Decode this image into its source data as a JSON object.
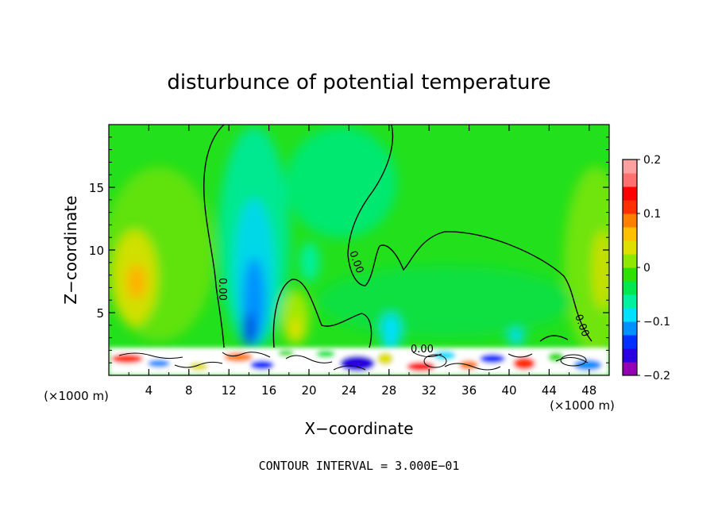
{
  "chart_data": {
    "type": "heatmap",
    "title": "disturbunce of potential temperature",
    "xlabel": "X−coordinate",
    "ylabel": "Z−coordinate",
    "x_unit_left": "(×1000 m)",
    "x_unit_right": "(×1000 m)",
    "xlim": [
      0,
      50
    ],
    "ylim": [
      0,
      20
    ],
    "x_ticks": [
      4,
      8,
      12,
      16,
      20,
      24,
      28,
      32,
      36,
      40,
      44,
      48
    ],
    "y_ticks": [
      5,
      10,
      15
    ],
    "colorbar": {
      "min": -0.2,
      "max": 0.2,
      "tick_values": [
        0.2,
        0.1,
        0,
        -0.1,
        -0.2
      ],
      "tick_labels": [
        "0.2",
        "0.1",
        "0",
        "−0.1",
        "−0.2"
      ]
    },
    "contour_labels": [
      "0.00",
      "0.00",
      "0.00",
      "0.00"
    ],
    "footer": "CONTOUR INTERVAL = 3.000E−01",
    "grid": false
  },
  "colors": {
    "background_field": "#22e01c",
    "colorbar_stops": [
      "#9400b4",
      "#2a00e0",
      "#0030ff",
      "#0090ff",
      "#00e0ff",
      "#00f0a0",
      "#00e850",
      "#30e000",
      "#90e800",
      "#e0e000",
      "#ffc000",
      "#ff8000",
      "#ff3000",
      "#ff0000",
      "#ff7070",
      "#ffa0a0"
    ]
  }
}
